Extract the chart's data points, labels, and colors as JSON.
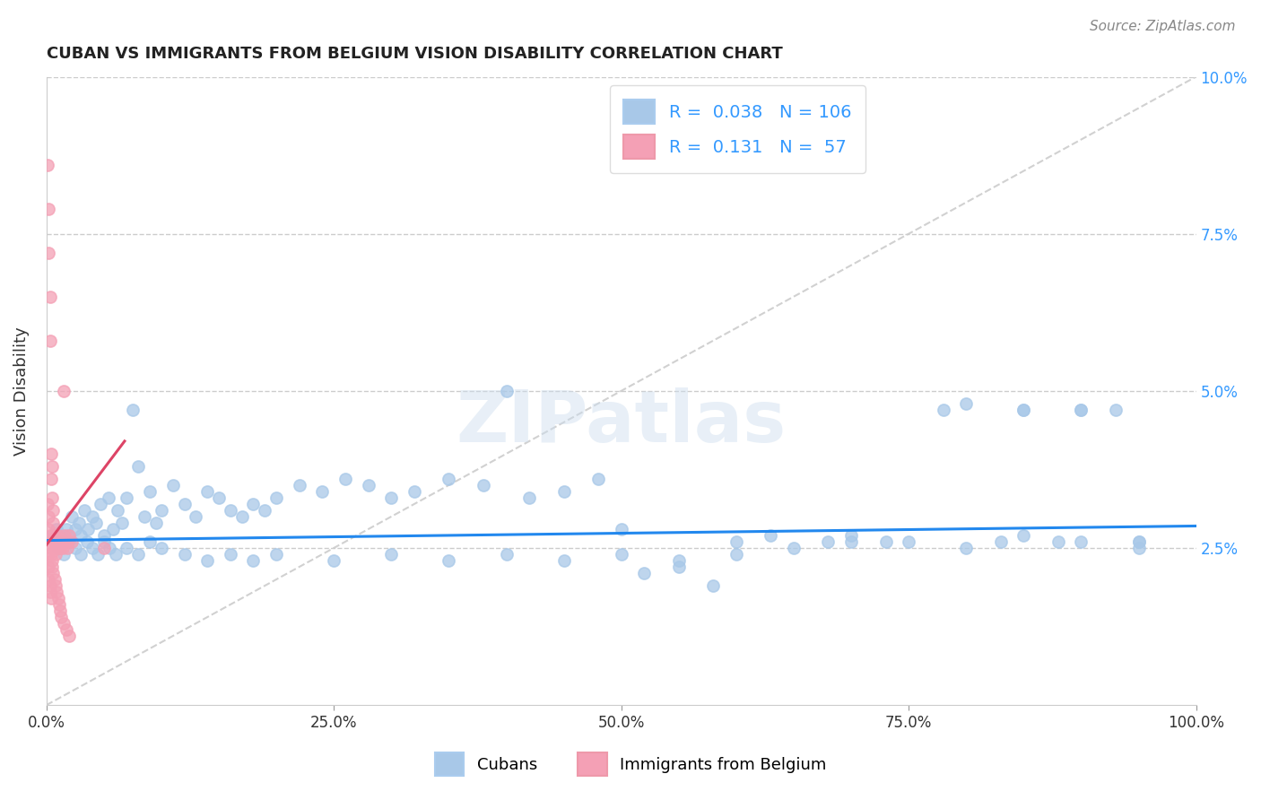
{
  "title": "CUBAN VS IMMIGRANTS FROM BELGIUM VISION DISABILITY CORRELATION CHART",
  "source": "Source: ZipAtlas.com",
  "ylabel": "Vision Disability",
  "xlim": [
    0,
    1.0
  ],
  "ylim": [
    0,
    0.1
  ],
  "xticks": [
    0,
    0.25,
    0.5,
    0.75,
    1.0
  ],
  "xtick_labels": [
    "0.0%",
    "25.0%",
    "50.0%",
    "75.0%",
    "100.0%"
  ],
  "yticks": [
    0.025,
    0.05,
    0.075,
    0.1
  ],
  "ytick_labels": [
    "2.5%",
    "5.0%",
    "7.5%",
    "10.0%"
  ],
  "blue_color": "#a8c8e8",
  "pink_color": "#f4a0b5",
  "blue_line_color": "#2288ee",
  "pink_line_color": "#dd4466",
  "R_blue": 0.038,
  "N_blue": 106,
  "R_pink": 0.131,
  "N_pink": 57,
  "legend_labels": [
    "Cubans",
    "Immigrants from Belgium"
  ],
  "watermark": "ZIPatlas",
  "blue_line_x": [
    0.0,
    1.0
  ],
  "blue_line_y": [
    0.0262,
    0.0285
  ],
  "pink_line_x": [
    0.0,
    0.068
  ],
  "pink_line_y": [
    0.0255,
    0.042
  ],
  "diag_line_x": [
    0.0,
    1.0
  ],
  "diag_line_y": [
    0.0,
    0.1
  ],
  "blue_scatter_x": [
    0.005,
    0.007,
    0.009,
    0.011,
    0.013,
    0.015,
    0.017,
    0.019,
    0.022,
    0.025,
    0.028,
    0.03,
    0.033,
    0.036,
    0.04,
    0.043,
    0.047,
    0.05,
    0.054,
    0.058,
    0.062,
    0.066,
    0.07,
    0.075,
    0.08,
    0.085,
    0.09,
    0.095,
    0.1,
    0.11,
    0.12,
    0.13,
    0.14,
    0.15,
    0.16,
    0.17,
    0.18,
    0.19,
    0.2,
    0.22,
    0.24,
    0.26,
    0.28,
    0.3,
    0.32,
    0.35,
    0.38,
    0.4,
    0.42,
    0.45,
    0.48,
    0.5,
    0.52,
    0.55,
    0.58,
    0.6,
    0.63,
    0.65,
    0.68,
    0.7,
    0.73,
    0.75,
    0.78,
    0.8,
    0.83,
    0.85,
    0.88,
    0.9,
    0.93,
    0.95,
    0.01,
    0.015,
    0.02,
    0.025,
    0.03,
    0.035,
    0.04,
    0.045,
    0.05,
    0.055,
    0.06,
    0.07,
    0.08,
    0.09,
    0.1,
    0.12,
    0.14,
    0.16,
    0.18,
    0.2,
    0.25,
    0.3,
    0.35,
    0.4,
    0.45,
    0.5,
    0.55,
    0.6,
    0.7,
    0.8,
    0.85,
    0.9,
    0.95,
    0.85,
    0.9,
    0.95
  ],
  "blue_scatter_y": [
    0.027,
    0.026,
    0.028,
    0.025,
    0.027,
    0.026,
    0.028,
    0.027,
    0.03,
    0.028,
    0.029,
    0.027,
    0.031,
    0.028,
    0.03,
    0.029,
    0.032,
    0.027,
    0.033,
    0.028,
    0.031,
    0.029,
    0.033,
    0.047,
    0.038,
    0.03,
    0.034,
    0.029,
    0.031,
    0.035,
    0.032,
    0.03,
    0.034,
    0.033,
    0.031,
    0.03,
    0.032,
    0.031,
    0.033,
    0.035,
    0.034,
    0.036,
    0.035,
    0.033,
    0.034,
    0.036,
    0.035,
    0.05,
    0.033,
    0.034,
    0.036,
    0.028,
    0.021,
    0.022,
    0.019,
    0.026,
    0.027,
    0.025,
    0.026,
    0.027,
    0.026,
    0.026,
    0.047,
    0.048,
    0.026,
    0.027,
    0.026,
    0.047,
    0.047,
    0.026,
    0.025,
    0.024,
    0.026,
    0.025,
    0.024,
    0.026,
    0.025,
    0.024,
    0.026,
    0.025,
    0.024,
    0.025,
    0.024,
    0.026,
    0.025,
    0.024,
    0.023,
    0.024,
    0.023,
    0.024,
    0.023,
    0.024,
    0.023,
    0.024,
    0.023,
    0.024,
    0.023,
    0.024,
    0.026,
    0.025,
    0.047,
    0.047,
    0.026,
    0.047,
    0.026,
    0.025
  ],
  "pink_scatter_x": [
    0.001,
    0.002,
    0.002,
    0.003,
    0.003,
    0.004,
    0.004,
    0.005,
    0.005,
    0.006,
    0.006,
    0.007,
    0.007,
    0.008,
    0.008,
    0.009,
    0.009,
    0.01,
    0.01,
    0.011,
    0.012,
    0.013,
    0.014,
    0.015,
    0.016,
    0.017,
    0.018,
    0.019,
    0.02,
    0.022,
    0.001,
    0.002,
    0.002,
    0.003,
    0.003,
    0.004,
    0.004,
    0.005,
    0.005,
    0.006,
    0.007,
    0.008,
    0.009,
    0.01,
    0.011,
    0.012,
    0.013,
    0.015,
    0.017,
    0.02,
    0.001,
    0.002,
    0.002,
    0.003,
    0.003,
    0.004,
    0.05
  ],
  "pink_scatter_y": [
    0.086,
    0.079,
    0.072,
    0.065,
    0.058,
    0.04,
    0.036,
    0.038,
    0.033,
    0.031,
    0.029,
    0.027,
    0.026,
    0.025,
    0.024,
    0.026,
    0.025,
    0.027,
    0.026,
    0.025,
    0.025,
    0.026,
    0.025,
    0.05,
    0.027,
    0.026,
    0.025,
    0.026,
    0.027,
    0.026,
    0.032,
    0.03,
    0.028,
    0.027,
    0.026,
    0.025,
    0.024,
    0.023,
    0.022,
    0.021,
    0.02,
    0.019,
    0.018,
    0.017,
    0.016,
    0.015,
    0.014,
    0.013,
    0.012,
    0.011,
    0.024,
    0.022,
    0.02,
    0.019,
    0.018,
    0.017,
    0.025
  ]
}
